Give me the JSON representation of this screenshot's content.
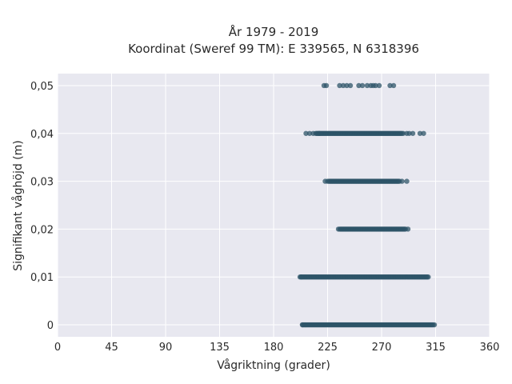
{
  "chart_data": {
    "type": "scatter",
    "title": "År 1979 - 2019",
    "subtitle": "Koordinat (Sweref 99 TM): E 339565, N 6318396",
    "xlabel": "Vågriktning (grader)",
    "ylabel": "Signifikant våghöjd (m)",
    "xlim": [
      0,
      360
    ],
    "ylim": [
      -0.0025,
      0.0525
    ],
    "x_ticks": [
      0,
      45,
      90,
      135,
      180,
      225,
      270,
      315,
      360
    ],
    "x_tick_labels": [
      "0",
      "45",
      "90",
      "135",
      "180",
      "225",
      "270",
      "315",
      "360"
    ],
    "y_ticks": [
      0,
      0.01,
      0.02,
      0.03,
      0.04,
      0.05
    ],
    "y_tick_labels": [
      "0",
      "0,01",
      "0,02",
      "0,03",
      "0,04",
      "0,05"
    ],
    "grid": true,
    "marker_color": "#2e5468",
    "plot_background": "#e8e8f0",
    "bands": [
      {
        "y": 0.05,
        "points": [
          222,
          224,
          235,
          238,
          241,
          244,
          251,
          254,
          258,
          261,
          263,
          265,
          268,
          277,
          280
        ]
      },
      {
        "y": 0.04,
        "dense_from": 215,
        "dense_to": 287,
        "points": [
          207,
          210,
          213,
          218,
          288,
          291,
          293,
          296,
          302,
          305
        ]
      },
      {
        "y": 0.03,
        "dense_from": 226,
        "dense_to": 285,
        "points": [
          223,
          225,
          287,
          291
        ]
      },
      {
        "y": 0.02,
        "dense_from": 235,
        "dense_to": 290,
        "points": [
          234,
          292
        ]
      },
      {
        "y": 0.01,
        "dense_from": 203,
        "dense_to": 309,
        "points": [
          202,
          203
        ]
      },
      {
        "y": 0.0,
        "dense_from": 204,
        "dense_to": 313,
        "points": [
          204,
          314
        ]
      }
    ]
  }
}
